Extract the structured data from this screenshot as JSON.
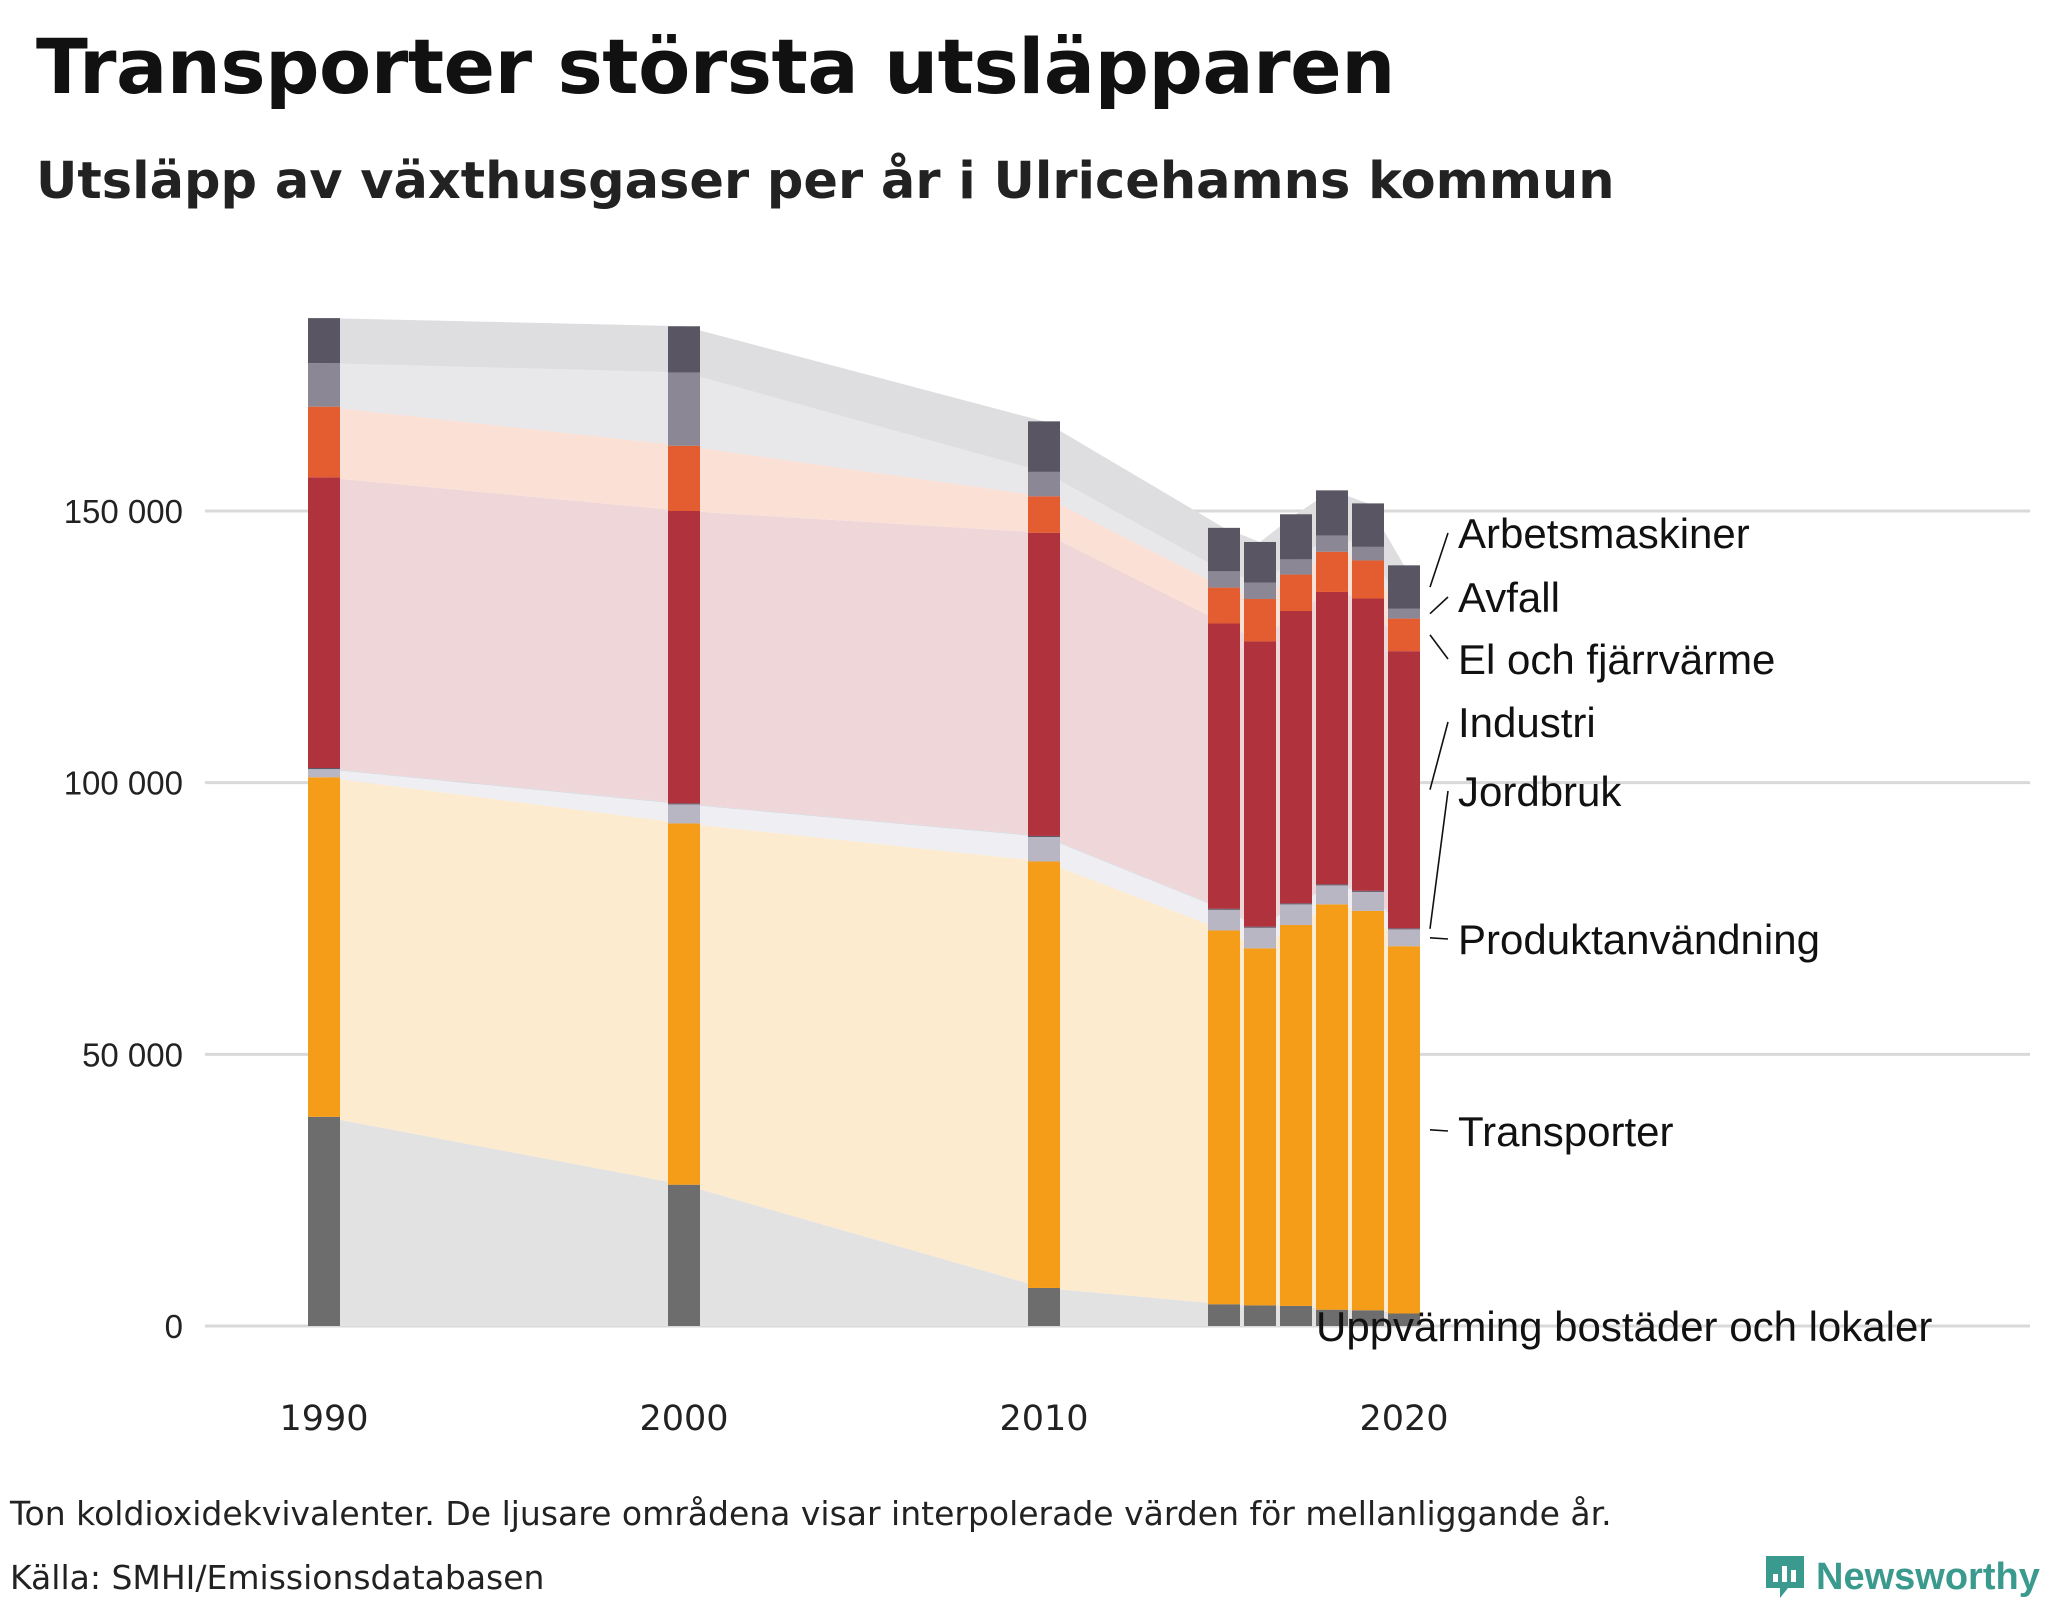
{
  "header": {
    "title": "Transporter största utsläpparen",
    "subtitle": "Utsläpp av växthusgaser per år i Ulricehamns kommun"
  },
  "footer": {
    "note": "Ton koldioxidekvivalenter. De ljusare områdena visar interpolerade värden för mellanliggande år.",
    "source": "Källa: SMHI/Emissionsdatabasen",
    "brand": "Newsworthy"
  },
  "chart_data": {
    "type": "bar",
    "stacked": true,
    "title": "Utsläpp av växthusgaser per år i Ulricehamns kommun",
    "ylabel": "Ton koldioxidekvivalenter",
    "xlabel": "",
    "ylim": [
      0,
      190000
    ],
    "yticks": [
      0,
      50000,
      100000,
      150000
    ],
    "ytick_labels": [
      "0",
      "50 000",
      "100 000",
      "150 000"
    ],
    "xticks": [
      1990,
      2000,
      2010,
      2020
    ],
    "xtick_labels": [
      "1990",
      "2000",
      "2010",
      "2020"
    ],
    "grid": true,
    "interpolated_areas": true,
    "years": [
      1990,
      2000,
      2010,
      2015,
      2016,
      2017,
      2018,
      2019,
      2020
    ],
    "series": [
      {
        "name": "Uppvärming bostäder och lokaler",
        "color": "#6d6d6d",
        "area_color": "#e2e2e2",
        "values": [
          38500,
          26000,
          7000,
          4000,
          3800,
          3700,
          3000,
          2900,
          2300
        ]
      },
      {
        "name": "Transporter",
        "color": "#f59d19",
        "area_color": "#fdebd0",
        "values": [
          62500,
          66500,
          78500,
          68800,
          65700,
          70100,
          74600,
          73500,
          67600
        ]
      },
      {
        "name": "Produktanvändning",
        "color": "#b9b6c3",
        "area_color": "#efeef2",
        "values": [
          1500,
          3500,
          4500,
          3800,
          3800,
          3800,
          3500,
          3500,
          3100
        ]
      },
      {
        "name": "Jordbruk",
        "color": "#5d5668",
        "area_color": "#dcd9de",
        "values": [
          200,
          200,
          200,
          200,
          200,
          200,
          200,
          200,
          200
        ]
      },
      {
        "name": "Industri",
        "color": "#b0323d",
        "area_color": "#efd6d9",
        "values": [
          53500,
          53800,
          55800,
          52500,
          52500,
          53800,
          53800,
          53800,
          51000
        ]
      },
      {
        "name": "El och fjärrvärme",
        "color": "#e35d30",
        "area_color": "#fbe0d6",
        "values": [
          13000,
          12000,
          6700,
          6600,
          7800,
          6700,
          7400,
          7000,
          6000
        ]
      },
      {
        "name": "Avfall",
        "color": "#8c8794",
        "area_color": "#e8e7ea",
        "values": [
          8000,
          13500,
          4500,
          3000,
          3000,
          2800,
          3000,
          2500,
          1800
        ]
      },
      {
        "name": "Arbetsmaskiner",
        "color": "#5a5563",
        "area_color": "#dedde0",
        "values": [
          8300,
          8500,
          9300,
          8000,
          7500,
          8300,
          8300,
          8000,
          8000
        ]
      }
    ],
    "legend": "right, direct labels"
  }
}
